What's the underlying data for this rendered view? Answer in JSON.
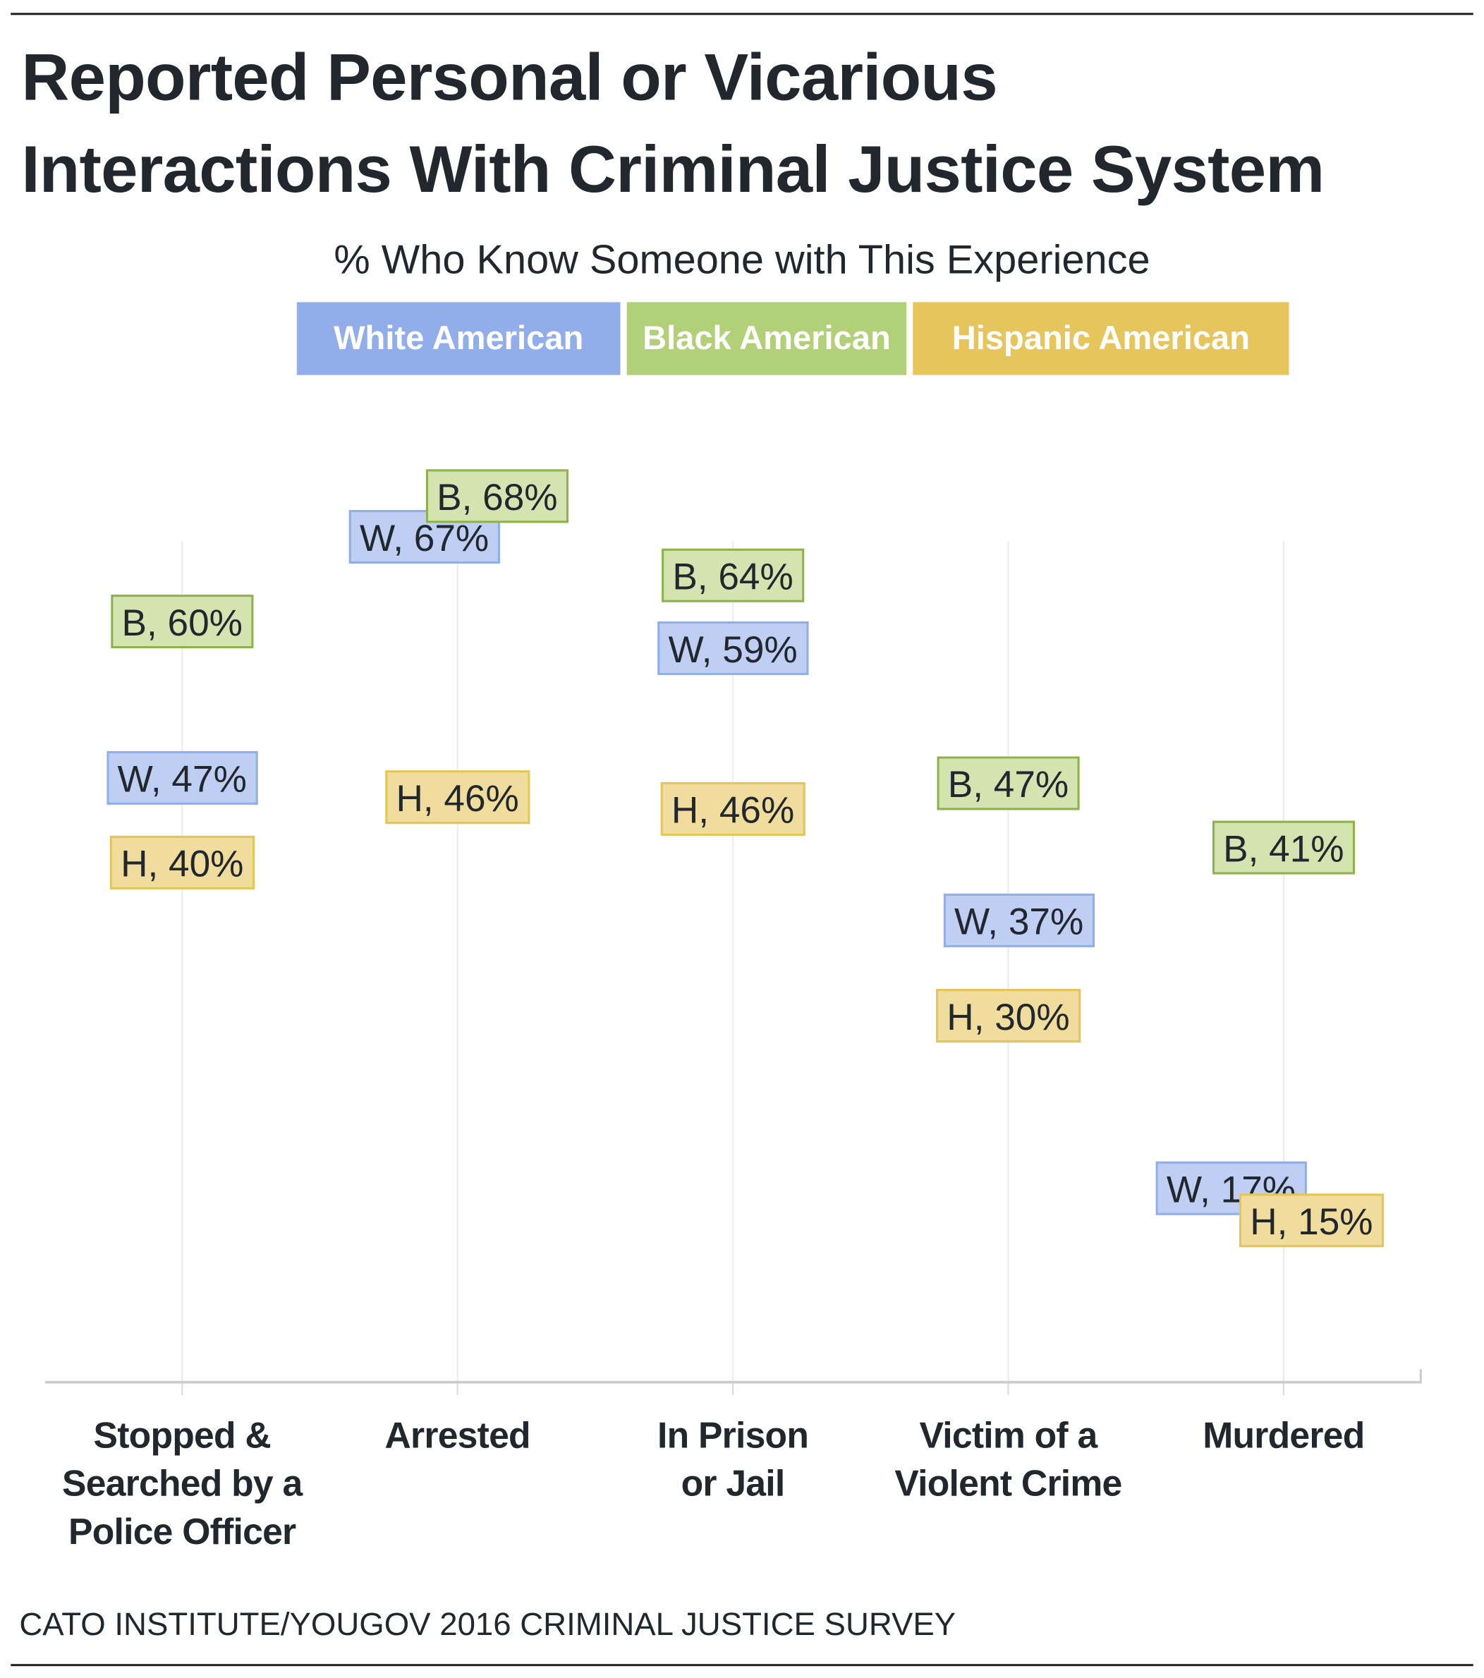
{
  "title_lines": [
    "Reported Personal or Vicarious",
    "Interactions With Criminal Justice System"
  ],
  "subtitle": "% Who Know Someone with This Experience",
  "source": "CATO INSTITUTE/YOUGOV 2016 CRIMINAL JUSTICE SURVEY",
  "colors": {
    "white_legend": "#92aeea",
    "black_legend": "#b2d078",
    "hispanic_legend": "#e6c65c",
    "white_fill": "#bfcff3",
    "white_border": "#91aee9",
    "black_fill": "#d3e4b0",
    "black_border": "#8db24a",
    "hispanic_fill": "#f0dc9d",
    "hispanic_border": "#e5c555"
  },
  "chart_data": {
    "type": "scatter",
    "title": "Reported Personal or Vicarious Interactions With Criminal Justice System",
    "subtitle": "% Who Know Someone with This Experience",
    "categories": [
      "Stopped & Searched by a Police Officer",
      "Arrested",
      "In Prison or Jail",
      "Victim of a Violent Crime",
      "Murdered"
    ],
    "category_lines": [
      [
        "Stopped &",
        "Searched by a",
        "Police Officer"
      ],
      [
        "Arrested"
      ],
      [
        "In Prison",
        "or Jail"
      ],
      [
        "Victim of a",
        "Violent Crime"
      ],
      [
        "Murdered"
      ]
    ],
    "series": [
      {
        "name": "White American",
        "abbr": "W",
        "key": "white",
        "values": [
          47,
          67,
          59,
          37,
          17
        ],
        "labels": [
          "W, 47%",
          "W, 67%",
          "W, 59%",
          "W, 37%",
          "W, 17%"
        ]
      },
      {
        "name": "Black American",
        "abbr": "B",
        "key": "black",
        "values": [
          60,
          68,
          64,
          47,
          41
        ],
        "labels": [
          "B, 60%",
          "B, 68%",
          "B, 64%",
          "B, 47%",
          "B, 41%"
        ]
      },
      {
        "name": "Hispanic American",
        "abbr": "H",
        "key": "hispanic",
        "values": [
          40,
          46,
          46,
          30,
          15
        ],
        "labels": [
          "H, 40%",
          "H, 46%",
          "H, 46%",
          "H, 30%",
          "H, 15%"
        ]
      }
    ],
    "ylim": [
      0,
      100
    ],
    "grid": "vertical",
    "legend": "top-center",
    "xlabel": "",
    "ylabel": ""
  }
}
